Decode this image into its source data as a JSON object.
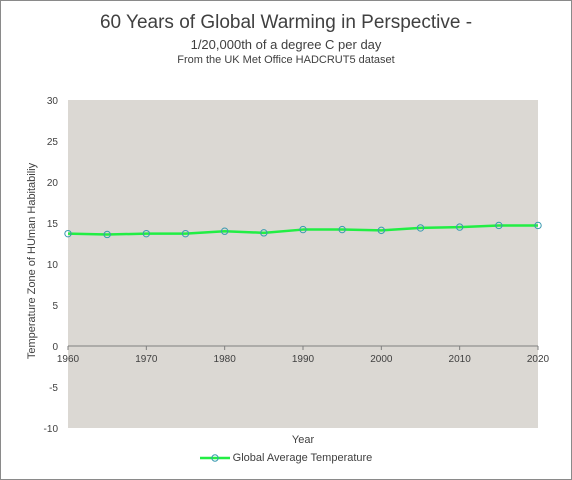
{
  "chart_data": {
    "type": "line",
    "title": "60 Years of Global Warming in Perspective -",
    "subtitle": "1/20,000th  of a degree C per day",
    "subtitle2": "From the  UK Met  Office HADCRUT5  dataset",
    "xlabel": "Year",
    "ylabel": "Temperature Zone of HUman Habitabiliy",
    "xlim": [
      1960,
      2020
    ],
    "ylim": [
      -10,
      30
    ],
    "x_ticks": [
      1960,
      1970,
      1980,
      1990,
      2000,
      2010,
      2020
    ],
    "y_ticks": [
      -10,
      -5,
      0,
      5,
      10,
      15,
      20,
      25,
      30
    ],
    "grid": false,
    "legend": "bottom",
    "plot_background": "#dbd8d3",
    "series": [
      {
        "name": "Global Average Temperature",
        "color": "#22ee44",
        "marker_color": "#3a9ab0",
        "x": [
          1960,
          1965,
          1970,
          1975,
          1980,
          1985,
          1990,
          1995,
          2000,
          2005,
          2010,
          2015,
          2020
        ],
        "y": [
          13.7,
          13.6,
          13.7,
          13.7,
          14.0,
          13.8,
          14.2,
          14.2,
          14.1,
          14.4,
          14.5,
          14.7,
          14.7
        ]
      }
    ]
  }
}
